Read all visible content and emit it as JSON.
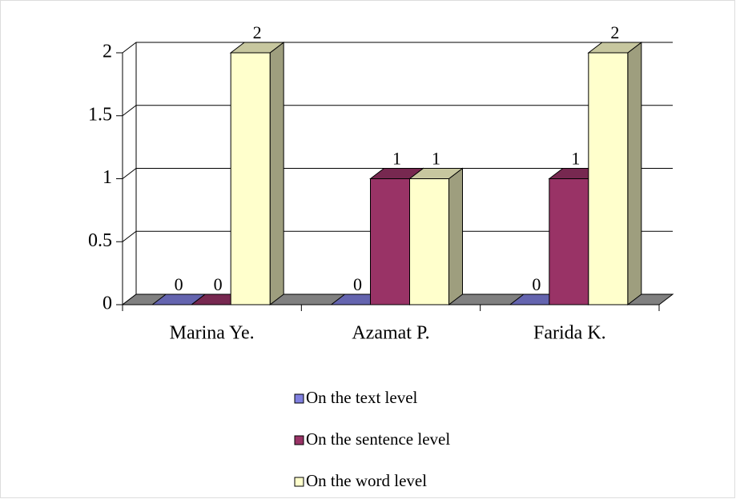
{
  "chart_data": {
    "type": "bar3d",
    "categories": [
      "Marina Ye.",
      "Azamat P.",
      "Farida K."
    ],
    "series": [
      {
        "name": "On the text level",
        "color": "#8080e0",
        "values": [
          0,
          0,
          0
        ]
      },
      {
        "name": "On the sentence level",
        "color": "#993366",
        "values": [
          0,
          1,
          1
        ]
      },
      {
        "name": "On the word level",
        "color": "#ffffcc",
        "values": [
          2,
          1,
          2
        ]
      }
    ],
    "ylim": [
      0,
      2
    ],
    "yticks": [
      0,
      0.5,
      1,
      1.5,
      2
    ],
    "grid": true,
    "legend": "bottom"
  }
}
